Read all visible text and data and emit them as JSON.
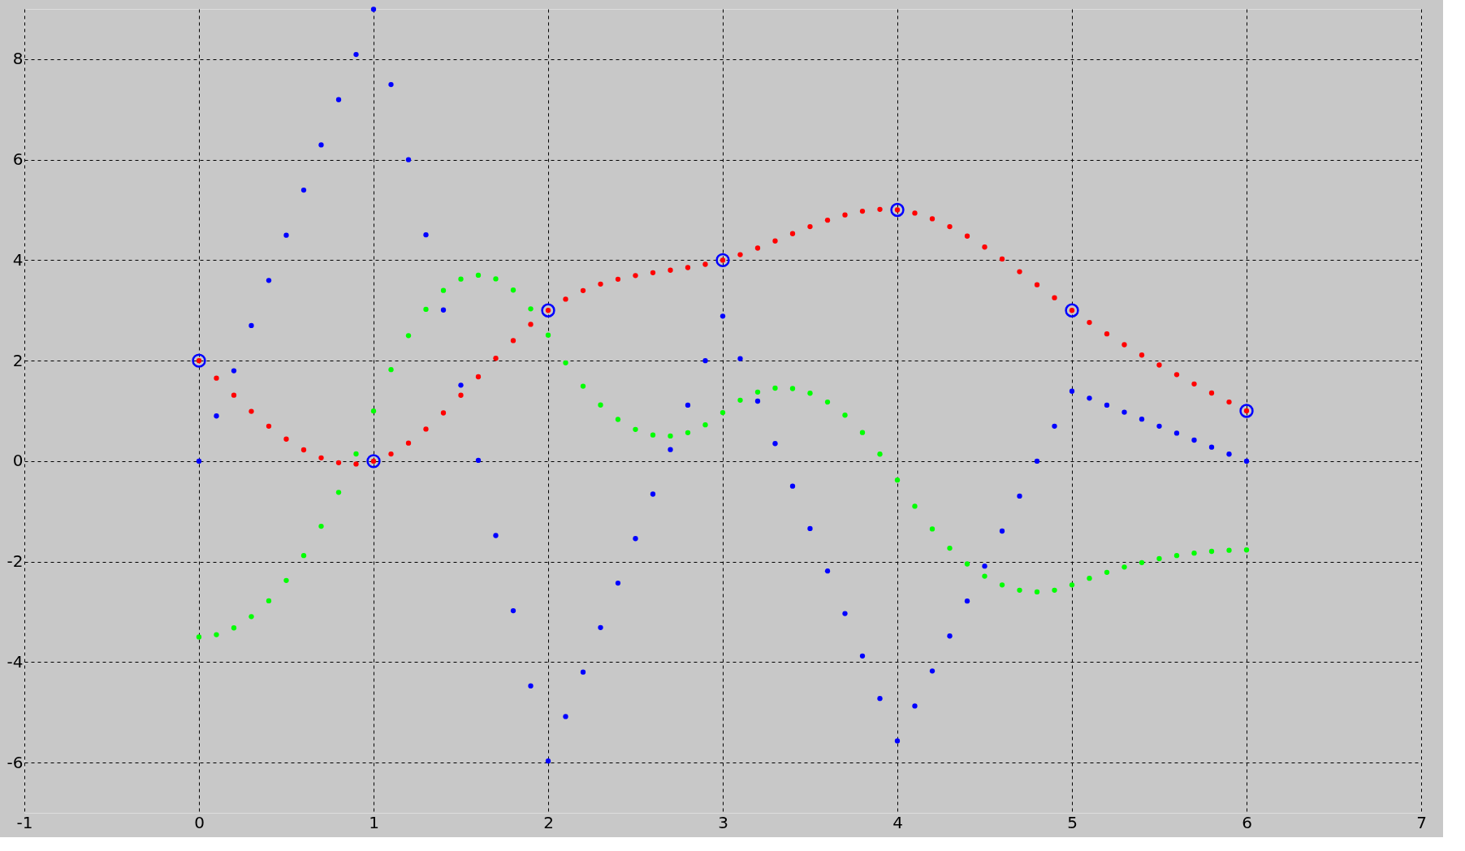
{
  "chart_data": {
    "type": "scatter",
    "xlim": [
      -1,
      7
    ],
    "ylim": [
      -7,
      9
    ],
    "xticks": [
      -1,
      0,
      1,
      2,
      3,
      4,
      5,
      6,
      7
    ],
    "yticks": [
      -6,
      -4,
      -2,
      0,
      2,
      4,
      6,
      8
    ],
    "grid": true,
    "marker": "circle",
    "x": [
      0,
      0.1,
      0.2,
      0.3,
      0.4,
      0.5,
      0.6,
      0.7,
      0.8,
      0.9,
      1,
      1.1,
      1.2,
      1.3,
      1.4,
      1.5,
      1.6,
      1.7,
      1.8,
      1.9,
      2,
      2.1,
      2.2,
      2.3,
      2.4,
      2.5,
      2.6,
      2.7,
      2.8,
      2.9,
      3,
      3.1,
      3.2,
      3.3,
      3.4,
      3.5,
      3.6,
      3.7,
      3.8,
      3.9,
      4,
      4.1,
      4.2,
      4.3,
      4.4,
      4.5,
      4.6,
      4.7,
      4.8,
      4.9,
      5,
      5.1,
      5.2,
      5.3,
      5.4,
      5.5,
      5.6,
      5.7,
      5.8,
      5.9,
      6
    ],
    "series": [
      {
        "color": "#0000ff",
        "values": [
          0,
          0.899,
          1.798,
          2.698,
          3.597,
          4.496,
          5.395,
          6.294,
          7.194,
          8.093,
          8.992,
          7.496,
          6.0,
          4.504,
          3.008,
          1.512,
          0.015,
          -1.481,
          -2.977,
          -4.473,
          -5.969,
          -5.084,
          -4.198,
          -3.313,
          -2.427,
          -1.542,
          -0.657,
          0.229,
          1.114,
          2.0,
          2.885,
          2.04,
          1.194,
          0.349,
          -0.497,
          -1.342,
          -2.187,
          -3.033,
          -3.878,
          -4.724,
          -5.569,
          -4.873,
          -4.177,
          -3.481,
          -2.785,
          -2.089,
          -1.392,
          -0.696,
          0,
          0.696,
          1.392,
          1.253,
          1.114,
          0.974,
          0.835,
          0.696,
          0.557,
          0.418,
          0.278,
          0.139,
          0
        ]
      },
      {
        "color": "#00ff00",
        "values": [
          -3.5,
          -3.454,
          -3.319,
          -3.094,
          -2.78,
          -2.375,
          -1.88,
          -1.296,
          -0.622,
          0.143,
          0.997,
          1.822,
          2.497,
          3.022,
          3.397,
          3.623,
          3.7,
          3.627,
          3.404,
          3.031,
          2.509,
          1.956,
          1.492,
          1.117,
          0.83,
          0.631,
          0.521,
          0.5,
          0.567,
          0.723,
          0.967,
          1.213,
          1.374,
          1.452,
          1.444,
          1.352,
          1.176,
          0.915,
          0.569,
          0.139,
          -0.376,
          -0.898,
          -1.35,
          -1.733,
          -2.046,
          -2.29,
          -2.464,
          -2.569,
          -2.603,
          -2.569,
          -2.464,
          -2.332,
          -2.213,
          -2.109,
          -2.019,
          -1.942,
          -1.879,
          -1.831,
          -1.796,
          -1.775,
          -1.768
        ]
      },
      {
        "color": "#ff0000",
        "values": [
          2,
          1.652,
          1.312,
          0.991,
          0.696,
          0.438,
          0.224,
          0.065,
          -0.032,
          -0.057,
          0,
          0.142,
          0.359,
          0.637,
          0.959,
          1.311,
          1.679,
          2.046,
          2.399,
          2.722,
          3,
          3.223,
          3.394,
          3.524,
          3.621,
          3.693,
          3.75,
          3.8,
          3.853,
          3.917,
          4,
          4.11,
          4.24,
          4.382,
          4.527,
          4.668,
          4.795,
          4.9,
          4.975,
          5.011,
          5,
          4.936,
          4.823,
          4.668,
          4.479,
          4.261,
          4.023,
          3.771,
          3.511,
          3.252,
          3,
          2.76,
          2.533,
          2.317,
          2.111,
          1.913,
          1.722,
          1.536,
          1.355,
          1.177,
          1
        ]
      },
      {
        "color": "#0000ff",
        "marker": "circle",
        "x": [
          0,
          1,
          2,
          3,
          4,
          5,
          6
        ],
        "values": [
          2,
          0,
          3,
          4,
          5,
          3,
          1
        ]
      }
    ]
  }
}
